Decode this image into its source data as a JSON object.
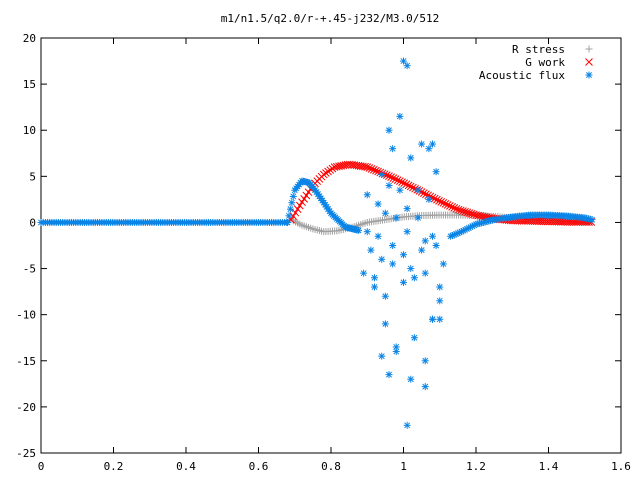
{
  "chart_data": {
    "type": "scatter",
    "title": "m1/n1.5/q2.0/r-+.45-j232/M3.0/512",
    "xlabel": "",
    "ylabel": "",
    "xlim": [
      0,
      1.6
    ],
    "ylim": [
      -25,
      20
    ],
    "xticks": [
      0,
      0.2,
      0.4,
      0.6,
      0.8,
      1,
      1.2,
      1.4,
      1.6
    ],
    "xtick_labels": [
      "0",
      "0.2",
      "0.4",
      "0.6",
      "0.8",
      "1",
      "1.2",
      "1.4",
      "1.6"
    ],
    "yticks": [
      -25,
      -20,
      -15,
      -10,
      -5,
      0,
      5,
      10,
      15,
      20
    ],
    "ytick_labels": [
      "-25",
      "-20",
      "-15",
      "-10",
      "-5",
      "0",
      "5",
      "10",
      "15",
      "20"
    ],
    "grid": false,
    "legend_position": "top-right",
    "series": [
      {
        "name": "R stress",
        "marker": "plus",
        "color": "#a0a0a0",
        "x": [
          0.69,
          0.72,
          0.75,
          0.78,
          0.82,
          0.86,
          0.9,
          0.95,
          1.0,
          1.05,
          1.1,
          1.15,
          1.2,
          1.25,
          1.3,
          1.35,
          1.4,
          1.45,
          1.5
        ],
        "y": [
          0.3,
          -0.3,
          -0.7,
          -1.0,
          -0.9,
          -0.5,
          0.0,
          0.3,
          0.6,
          0.75,
          0.8,
          0.8,
          0.75,
          0.65,
          0.5,
          0.35,
          0.2,
          0.1,
          0.05
        ]
      },
      {
        "name": "G work",
        "marker": "cross",
        "color": "#ff0000",
        "x": [
          0.69,
          0.72,
          0.75,
          0.78,
          0.81,
          0.85,
          0.9,
          0.95,
          1.0,
          1.05,
          1.1,
          1.15,
          1.2,
          1.25,
          1.3,
          1.35,
          1.4,
          1.45,
          1.5
        ],
        "y": [
          0.3,
          2.2,
          4.0,
          5.2,
          6.0,
          6.3,
          6.0,
          5.2,
          4.3,
          3.3,
          2.3,
          1.4,
          0.8,
          0.4,
          0.2,
          0.15,
          0.1,
          0.05,
          0.05
        ]
      },
      {
        "name": "Acoustic flux",
        "marker": "star",
        "color": "#0a84e6",
        "x": [
          0.0,
          0.1,
          0.2,
          0.3,
          0.4,
          0.5,
          0.6,
          0.65,
          0.68,
          0.69,
          0.7,
          0.72,
          0.74,
          0.76,
          0.8,
          0.84,
          0.88,
          0.9,
          0.92,
          0.94,
          0.96,
          0.98,
          1.0,
          1.02,
          1.04,
          1.06,
          1.08,
          1.1,
          1.12,
          1.14,
          1.16,
          1.2,
          1.25,
          1.3,
          1.35,
          1.4,
          1.45,
          1.5,
          1.52
        ],
        "y": [
          0,
          0,
          0,
          0,
          0,
          0,
          0,
          0,
          0.5,
          1.8,
          3.5,
          4.5,
          4.3,
          3.3,
          1.0,
          -0.5,
          -0.9,
          -3.5,
          -8.5,
          -14.5,
          -16.5,
          -13.5,
          2.5,
          -22.0,
          -9.0,
          -15.0,
          8.5,
          -10.5,
          -4.5,
          -2.0,
          -1.0,
          -0.2,
          0.3,
          0.6,
          0.8,
          0.8,
          0.7,
          0.5,
          0.3
        ]
      }
    ],
    "scatter_points": {
      "name": "Acoustic flux",
      "x": [
        0.96,
        0.99,
        1.0,
        1.01,
        0.94,
        0.97,
        1.02,
        1.05,
        1.07,
        1.09,
        0.89,
        0.92,
        0.95,
        0.98,
        1.03,
        1.06,
        1.08,
        1.1,
        0.9,
        0.93,
        0.96,
        0.99,
        1.01,
        1.04,
        1.07,
        0.91,
        0.94,
        0.97,
        1.0,
        1.02,
        1.05,
        1.08,
        1.11,
        0.9,
        0.93,
        0.95,
        0.98,
        1.01,
        1.04,
        1.06,
        1.09,
        0.92,
        0.95,
        0.97,
        1.0,
        1.03,
        1.06,
        1.08,
        1.1
      ],
      "y": [
        10.0,
        3.5,
        17.5,
        17.0,
        5.2,
        8.0,
        7.0,
        8.5,
        8.0,
        5.5,
        -5.5,
        -7.0,
        -11.0,
        -14.0,
        -12.5,
        -17.8,
        -10.5,
        -8.5,
        3.0,
        2.0,
        4.0,
        11.5,
        1.5,
        3.5,
        2.5,
        -3.0,
        -4.0,
        -2.5,
        -6.5,
        -5.0,
        -3.0,
        -1.5,
        -4.5,
        -1.0,
        -1.5,
        1.0,
        0.5,
        -1.0,
        0.5,
        -2.0,
        -2.5,
        -6.0,
        -8.0,
        -4.5,
        -3.5,
        -6.0,
        -5.5,
        -10.5,
        -7.0
      ]
    }
  }
}
